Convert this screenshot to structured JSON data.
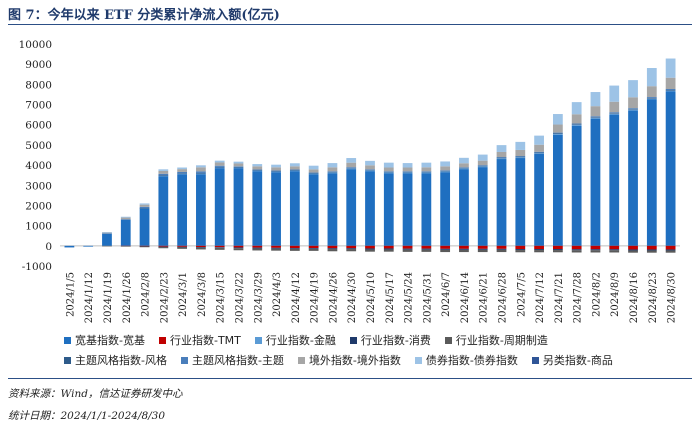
{
  "page": {
    "title": "图 7：今年以来 ETF 分类累计净流入额(亿元)",
    "source": "资料来源：Wind，信达证券研发中心",
    "date_range": "统计日期：2024/1/1-2024/8/30"
  },
  "chart_data": {
    "type": "bar",
    "stacked": true,
    "title": "今年以来 ETF 分类累计净流入额(亿元)",
    "ylim": [
      -1000,
      10000
    ],
    "yticks": [
      -1000,
      0,
      1000,
      2000,
      3000,
      4000,
      5000,
      6000,
      7000,
      8000,
      9000,
      10000
    ],
    "grid": false,
    "legend_position": "bottom",
    "categories": [
      "2024/1/5",
      "2024/1/12",
      "2024/1/19",
      "2024/1/26",
      "2024/2/8",
      "2024/2/23",
      "2024/3/1",
      "2024/3/8",
      "2024/3/15",
      "2024/3/22",
      "2024/3/29",
      "2024/4/3",
      "2024/4/12",
      "2024/4/19",
      "2024/4/26",
      "2024/4/30",
      "2024/5/10",
      "2024/5/17",
      "2024/5/24",
      "2024/5/31",
      "2024/6/7",
      "2024/6/14",
      "2024/6/21",
      "2024/6/28",
      "2024/7/5",
      "2024/7/12",
      "2024/7/21",
      "2024/7/28",
      "2024/8/2",
      "2024/8/9",
      "2024/8/16",
      "2024/8/23",
      "2024/8/30"
    ],
    "series": [
      {
        "name": "宽基指数-宽基",
        "color": "#1f6fc0",
        "values": [
          -80,
          -40,
          600,
          1280,
          1850,
          3450,
          3550,
          3550,
          3850,
          3850,
          3700,
          3650,
          3700,
          3550,
          3600,
          3800,
          3700,
          3600,
          3600,
          3600,
          3650,
          3800,
          3900,
          4300,
          4350,
          4550,
          5500,
          5950,
          6300,
          6500,
          6700,
          7250,
          7650
        ]
      },
      {
        "name": "行业指数-TMT",
        "color": "#c00000",
        "values": [
          0,
          0,
          0,
          -10,
          -20,
          -40,
          -50,
          -60,
          -70,
          -80,
          -90,
          -100,
          -110,
          -110,
          -120,
          -120,
          -130,
          -130,
          -140,
          -140,
          -150,
          -150,
          -150,
          -150,
          -160,
          -160,
          -160,
          -170,
          -170,
          -170,
          -180,
          -180,
          -180
        ]
      },
      {
        "name": "行业指数-金融",
        "color": "#5b9bd5",
        "values": [
          0,
          0,
          0,
          0,
          10,
          20,
          30,
          30,
          30,
          30,
          30,
          30,
          30,
          30,
          40,
          40,
          40,
          40,
          40,
          40,
          40,
          40,
          40,
          40,
          40,
          40,
          40,
          40,
          40,
          40,
          40,
          40,
          40
        ]
      },
      {
        "name": "行业指数-消费",
        "color": "#1f3a6b",
        "values": [
          0,
          0,
          0,
          0,
          -10,
          -20,
          -20,
          -30,
          -30,
          -40,
          -40,
          -40,
          -40,
          -40,
          -40,
          -40,
          -50,
          -50,
          -50,
          -50,
          -50,
          -50,
          -50,
          -50,
          -50,
          -50,
          -50,
          -50,
          -50,
          -50,
          -50,
          -50,
          -50
        ]
      },
      {
        "name": "行业指数-周期制造",
        "color": "#5a5a5a",
        "values": [
          0,
          0,
          -10,
          -20,
          -40,
          -60,
          -80,
          -90,
          -100,
          -100,
          -100,
          -100,
          -100,
          -100,
          -110,
          -110,
          -110,
          -110,
          -110,
          -110,
          -110,
          -110,
          -110,
          -110,
          -110,
          -110,
          -110,
          -110,
          -110,
          -110,
          -110,
          -110,
          -110
        ]
      },
      {
        "name": "主题风格指数-风格",
        "color": "#2e5b8a",
        "values": [
          0,
          0,
          0,
          0,
          10,
          20,
          20,
          30,
          30,
          30,
          30,
          30,
          30,
          30,
          30,
          30,
          30,
          30,
          30,
          30,
          30,
          30,
          30,
          30,
          30,
          30,
          30,
          30,
          30,
          30,
          30,
          30,
          30
        ]
      },
      {
        "name": "主题风格指数-主题",
        "color": "#4a7ebb",
        "values": [
          0,
          0,
          20,
          40,
          60,
          80,
          60,
          80,
          60,
          30,
          20,
          20,
          20,
          20,
          20,
          30,
          20,
          20,
          20,
          20,
          20,
          20,
          30,
          30,
          30,
          40,
          40,
          40,
          50,
          50,
          50,
          50,
          50
        ]
      },
      {
        "name": "境外指数-境外指数",
        "color": "#a6a6a6",
        "values": [
          0,
          0,
          40,
          80,
          110,
          140,
          140,
          200,
          160,
          140,
          160,
          160,
          160,
          160,
          200,
          220,
          200,
          190,
          190,
          200,
          200,
          200,
          220,
          250,
          300,
          350,
          400,
          460,
          500,
          520,
          540,
          540,
          560
        ]
      },
      {
        "name": "债券指数-债券指数",
        "color": "#9dc3e6",
        "values": [
          0,
          0,
          20,
          40,
          60,
          80,
          80,
          100,
          90,
          90,
          110,
          130,
          150,
          180,
          210,
          230,
          220,
          240,
          220,
          230,
          240,
          270,
          300,
          340,
          400,
          450,
          520,
          600,
          700,
          800,
          850,
          900,
          950
        ]
      },
      {
        "name": "另类指数-商品",
        "color": "#2f5597",
        "values": [
          0,
          0,
          0,
          0,
          0,
          0,
          0,
          0,
          0,
          0,
          0,
          0,
          0,
          0,
          0,
          0,
          0,
          0,
          0,
          0,
          0,
          0,
          0,
          0,
          0,
          0,
          0,
          0,
          0,
          0,
          0,
          0,
          0
        ]
      }
    ]
  }
}
